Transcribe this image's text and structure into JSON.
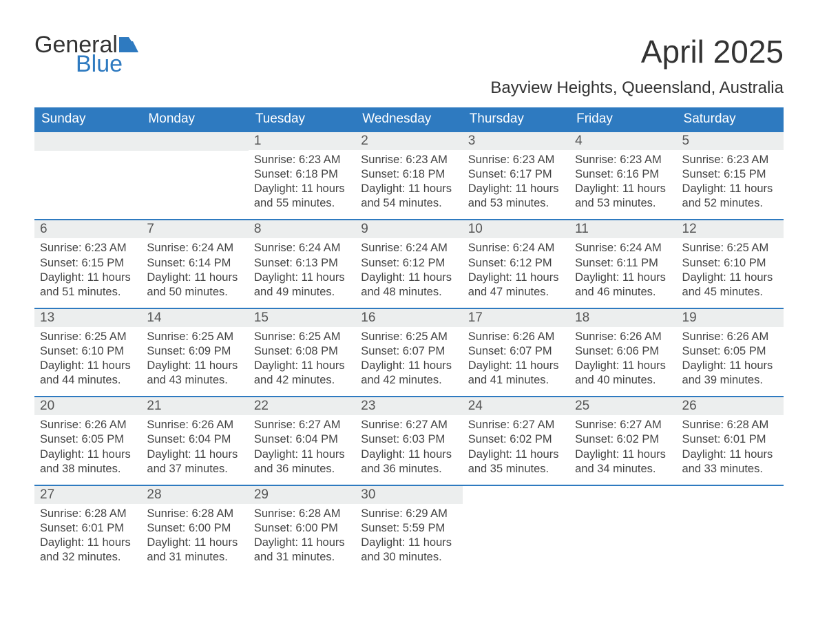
{
  "logo": {
    "word1": "General",
    "word2": "Blue",
    "icon_color": "#2e7ac0"
  },
  "title": "April 2025",
  "location": "Bayview Heights, Queensland, Australia",
  "colors": {
    "header_bg": "#2e7ac0",
    "header_text": "#ffffff",
    "daynum_bg": "#eceeee",
    "week_border": "#2e7ac0",
    "body_text": "#444444"
  },
  "typography": {
    "title_fontsize_pt": 34,
    "location_fontsize_pt": 18,
    "dow_fontsize_pt": 14,
    "body_fontsize_pt": 12
  },
  "days_of_week": [
    "Sunday",
    "Monday",
    "Tuesday",
    "Wednesday",
    "Thursday",
    "Friday",
    "Saturday"
  ],
  "weeks": [
    [
      {
        "num": "",
        "sunrise": "",
        "sunset": "",
        "daylight1": "",
        "daylight2": ""
      },
      {
        "num": "",
        "sunrise": "",
        "sunset": "",
        "daylight1": "",
        "daylight2": ""
      },
      {
        "num": "1",
        "sunrise": "Sunrise: 6:23 AM",
        "sunset": "Sunset: 6:18 PM",
        "daylight1": "Daylight: 11 hours",
        "daylight2": "and 55 minutes."
      },
      {
        "num": "2",
        "sunrise": "Sunrise: 6:23 AM",
        "sunset": "Sunset: 6:18 PM",
        "daylight1": "Daylight: 11 hours",
        "daylight2": "and 54 minutes."
      },
      {
        "num": "3",
        "sunrise": "Sunrise: 6:23 AM",
        "sunset": "Sunset: 6:17 PM",
        "daylight1": "Daylight: 11 hours",
        "daylight2": "and 53 minutes."
      },
      {
        "num": "4",
        "sunrise": "Sunrise: 6:23 AM",
        "sunset": "Sunset: 6:16 PM",
        "daylight1": "Daylight: 11 hours",
        "daylight2": "and 53 minutes."
      },
      {
        "num": "5",
        "sunrise": "Sunrise: 6:23 AM",
        "sunset": "Sunset: 6:15 PM",
        "daylight1": "Daylight: 11 hours",
        "daylight2": "and 52 minutes."
      }
    ],
    [
      {
        "num": "6",
        "sunrise": "Sunrise: 6:23 AM",
        "sunset": "Sunset: 6:15 PM",
        "daylight1": "Daylight: 11 hours",
        "daylight2": "and 51 minutes."
      },
      {
        "num": "7",
        "sunrise": "Sunrise: 6:24 AM",
        "sunset": "Sunset: 6:14 PM",
        "daylight1": "Daylight: 11 hours",
        "daylight2": "and 50 minutes."
      },
      {
        "num": "8",
        "sunrise": "Sunrise: 6:24 AM",
        "sunset": "Sunset: 6:13 PM",
        "daylight1": "Daylight: 11 hours",
        "daylight2": "and 49 minutes."
      },
      {
        "num": "9",
        "sunrise": "Sunrise: 6:24 AM",
        "sunset": "Sunset: 6:12 PM",
        "daylight1": "Daylight: 11 hours",
        "daylight2": "and 48 minutes."
      },
      {
        "num": "10",
        "sunrise": "Sunrise: 6:24 AM",
        "sunset": "Sunset: 6:12 PM",
        "daylight1": "Daylight: 11 hours",
        "daylight2": "and 47 minutes."
      },
      {
        "num": "11",
        "sunrise": "Sunrise: 6:24 AM",
        "sunset": "Sunset: 6:11 PM",
        "daylight1": "Daylight: 11 hours",
        "daylight2": "and 46 minutes."
      },
      {
        "num": "12",
        "sunrise": "Sunrise: 6:25 AM",
        "sunset": "Sunset: 6:10 PM",
        "daylight1": "Daylight: 11 hours",
        "daylight2": "and 45 minutes."
      }
    ],
    [
      {
        "num": "13",
        "sunrise": "Sunrise: 6:25 AM",
        "sunset": "Sunset: 6:10 PM",
        "daylight1": "Daylight: 11 hours",
        "daylight2": "and 44 minutes."
      },
      {
        "num": "14",
        "sunrise": "Sunrise: 6:25 AM",
        "sunset": "Sunset: 6:09 PM",
        "daylight1": "Daylight: 11 hours",
        "daylight2": "and 43 minutes."
      },
      {
        "num": "15",
        "sunrise": "Sunrise: 6:25 AM",
        "sunset": "Sunset: 6:08 PM",
        "daylight1": "Daylight: 11 hours",
        "daylight2": "and 42 minutes."
      },
      {
        "num": "16",
        "sunrise": "Sunrise: 6:25 AM",
        "sunset": "Sunset: 6:07 PM",
        "daylight1": "Daylight: 11 hours",
        "daylight2": "and 42 minutes."
      },
      {
        "num": "17",
        "sunrise": "Sunrise: 6:26 AM",
        "sunset": "Sunset: 6:07 PM",
        "daylight1": "Daylight: 11 hours",
        "daylight2": "and 41 minutes."
      },
      {
        "num": "18",
        "sunrise": "Sunrise: 6:26 AM",
        "sunset": "Sunset: 6:06 PM",
        "daylight1": "Daylight: 11 hours",
        "daylight2": "and 40 minutes."
      },
      {
        "num": "19",
        "sunrise": "Sunrise: 6:26 AM",
        "sunset": "Sunset: 6:05 PM",
        "daylight1": "Daylight: 11 hours",
        "daylight2": "and 39 minutes."
      }
    ],
    [
      {
        "num": "20",
        "sunrise": "Sunrise: 6:26 AM",
        "sunset": "Sunset: 6:05 PM",
        "daylight1": "Daylight: 11 hours",
        "daylight2": "and 38 minutes."
      },
      {
        "num": "21",
        "sunrise": "Sunrise: 6:26 AM",
        "sunset": "Sunset: 6:04 PM",
        "daylight1": "Daylight: 11 hours",
        "daylight2": "and 37 minutes."
      },
      {
        "num": "22",
        "sunrise": "Sunrise: 6:27 AM",
        "sunset": "Sunset: 6:04 PM",
        "daylight1": "Daylight: 11 hours",
        "daylight2": "and 36 minutes."
      },
      {
        "num": "23",
        "sunrise": "Sunrise: 6:27 AM",
        "sunset": "Sunset: 6:03 PM",
        "daylight1": "Daylight: 11 hours",
        "daylight2": "and 36 minutes."
      },
      {
        "num": "24",
        "sunrise": "Sunrise: 6:27 AM",
        "sunset": "Sunset: 6:02 PM",
        "daylight1": "Daylight: 11 hours",
        "daylight2": "and 35 minutes."
      },
      {
        "num": "25",
        "sunrise": "Sunrise: 6:27 AM",
        "sunset": "Sunset: 6:02 PM",
        "daylight1": "Daylight: 11 hours",
        "daylight2": "and 34 minutes."
      },
      {
        "num": "26",
        "sunrise": "Sunrise: 6:28 AM",
        "sunset": "Sunset: 6:01 PM",
        "daylight1": "Daylight: 11 hours",
        "daylight2": "and 33 minutes."
      }
    ],
    [
      {
        "num": "27",
        "sunrise": "Sunrise: 6:28 AM",
        "sunset": "Sunset: 6:01 PM",
        "daylight1": "Daylight: 11 hours",
        "daylight2": "and 32 minutes."
      },
      {
        "num": "28",
        "sunrise": "Sunrise: 6:28 AM",
        "sunset": "Sunset: 6:00 PM",
        "daylight1": "Daylight: 11 hours",
        "daylight2": "and 31 minutes."
      },
      {
        "num": "29",
        "sunrise": "Sunrise: 6:28 AM",
        "sunset": "Sunset: 6:00 PM",
        "daylight1": "Daylight: 11 hours",
        "daylight2": "and 31 minutes."
      },
      {
        "num": "30",
        "sunrise": "Sunrise: 6:29 AM",
        "sunset": "Sunset: 5:59 PM",
        "daylight1": "Daylight: 11 hours",
        "daylight2": "and 30 minutes."
      },
      {
        "num": "",
        "sunrise": "",
        "sunset": "",
        "daylight1": "",
        "daylight2": ""
      },
      {
        "num": "",
        "sunrise": "",
        "sunset": "",
        "daylight1": "",
        "daylight2": ""
      },
      {
        "num": "",
        "sunrise": "",
        "sunset": "",
        "daylight1": "",
        "daylight2": ""
      }
    ]
  ]
}
